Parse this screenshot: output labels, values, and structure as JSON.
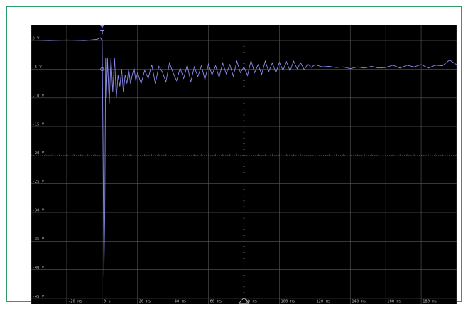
{
  "scope": {
    "trigger_label": "T",
    "colors": {
      "screen": "#000000",
      "grid": "#5a5a5a",
      "trace": "#8c8cf0",
      "frame": "#2e9b6a",
      "label": "#b8b8c4"
    }
  },
  "chart_data": {
    "type": "line",
    "title": "",
    "xlabel": "",
    "ylabel": "",
    "xlim": [
      -40,
      200
    ],
    "ylim": [
      -45,
      2
    ],
    "y_tick_labels": [
      "0 V",
      "-5 V",
      "-10 V",
      "-15 V",
      "-20 V",
      "-25 V",
      "-30 V",
      "-35 V",
      "-40 V",
      "-45 V"
    ],
    "y_tick_values": [
      0,
      -5,
      -10,
      -15,
      -20,
      -25,
      -30,
      -35,
      -40,
      -45
    ],
    "x_tick_labels": [
      "-20 ns",
      "0 s",
      "20 ns",
      "40 ns",
      "60 ns",
      "80 ns",
      "100 ns",
      "120 ns",
      "140 ns",
      "160 ns",
      "180 ns"
    ],
    "x_tick_values": [
      -20,
      0,
      20,
      40,
      60,
      80,
      100,
      120,
      140,
      160,
      180
    ],
    "trigger_x": 0,
    "series": [
      {
        "x": [
          -40,
          -30,
          -20,
          -10,
          -3,
          -1,
          0,
          0.5,
          1,
          1.5,
          2,
          2.5,
          3,
          4,
          5,
          6,
          7,
          8,
          9,
          10,
          11,
          12,
          13,
          14,
          15,
          16,
          17,
          18,
          19,
          20,
          22,
          24,
          26,
          28,
          30,
          32,
          34,
          36,
          38,
          40,
          42,
          44,
          46,
          48,
          50,
          52,
          54,
          56,
          58,
          60,
          62,
          64,
          66,
          68,
          70,
          72,
          74,
          76,
          78,
          80,
          82,
          84,
          86,
          88,
          90,
          92,
          94,
          96,
          98,
          100,
          102,
          104,
          106,
          108,
          110,
          112,
          114,
          116,
          118,
          120,
          124,
          128,
          132,
          136,
          140,
          144,
          148,
          152,
          156,
          160,
          164,
          168,
          172,
          176,
          180,
          184,
          188,
          192,
          196,
          200
        ],
        "values": [
          0.1,
          0,
          0.1,
          0,
          0.2,
          0.5,
          0,
          -18,
          -41,
          -30,
          -3,
          -10,
          -3,
          -11,
          -3,
          -9,
          -3,
          -10,
          -6,
          -8,
          -5,
          -9,
          -6,
          -7.5,
          -5,
          -7.5,
          -6,
          -4.8,
          -7,
          -5.6,
          -7.5,
          -5.2,
          -6.6,
          -4.2,
          -7.5,
          -4.5,
          -5.5,
          -7.2,
          -3.9,
          -5.6,
          -7,
          -4.8,
          -6.6,
          -4.3,
          -7.2,
          -4.6,
          -6.3,
          -4.4,
          -6.8,
          -4.1,
          -6,
          -4.4,
          -6.4,
          -3.9,
          -5.8,
          -4.2,
          -6.2,
          -3.6,
          -5.6,
          -4.6,
          -6.1,
          -3.5,
          -5.6,
          -4.2,
          -5.9,
          -3.6,
          -5.4,
          -3.9,
          -5.6,
          -3.8,
          -5.2,
          -3.7,
          -5.3,
          -3.6,
          -4.9,
          -3.9,
          -5.1,
          -4.1,
          -4.7,
          -4.2,
          -4.6,
          -4.5,
          -4.7,
          -4.6,
          -4.9,
          -4.6,
          -4.8,
          -4.5,
          -4.8,
          -4.7,
          -4.3,
          -4.8,
          -4.3,
          -4.6,
          -4.2,
          -4.8,
          -4.3,
          -4.4,
          -3.4,
          -4.2
        ]
      }
    ]
  }
}
